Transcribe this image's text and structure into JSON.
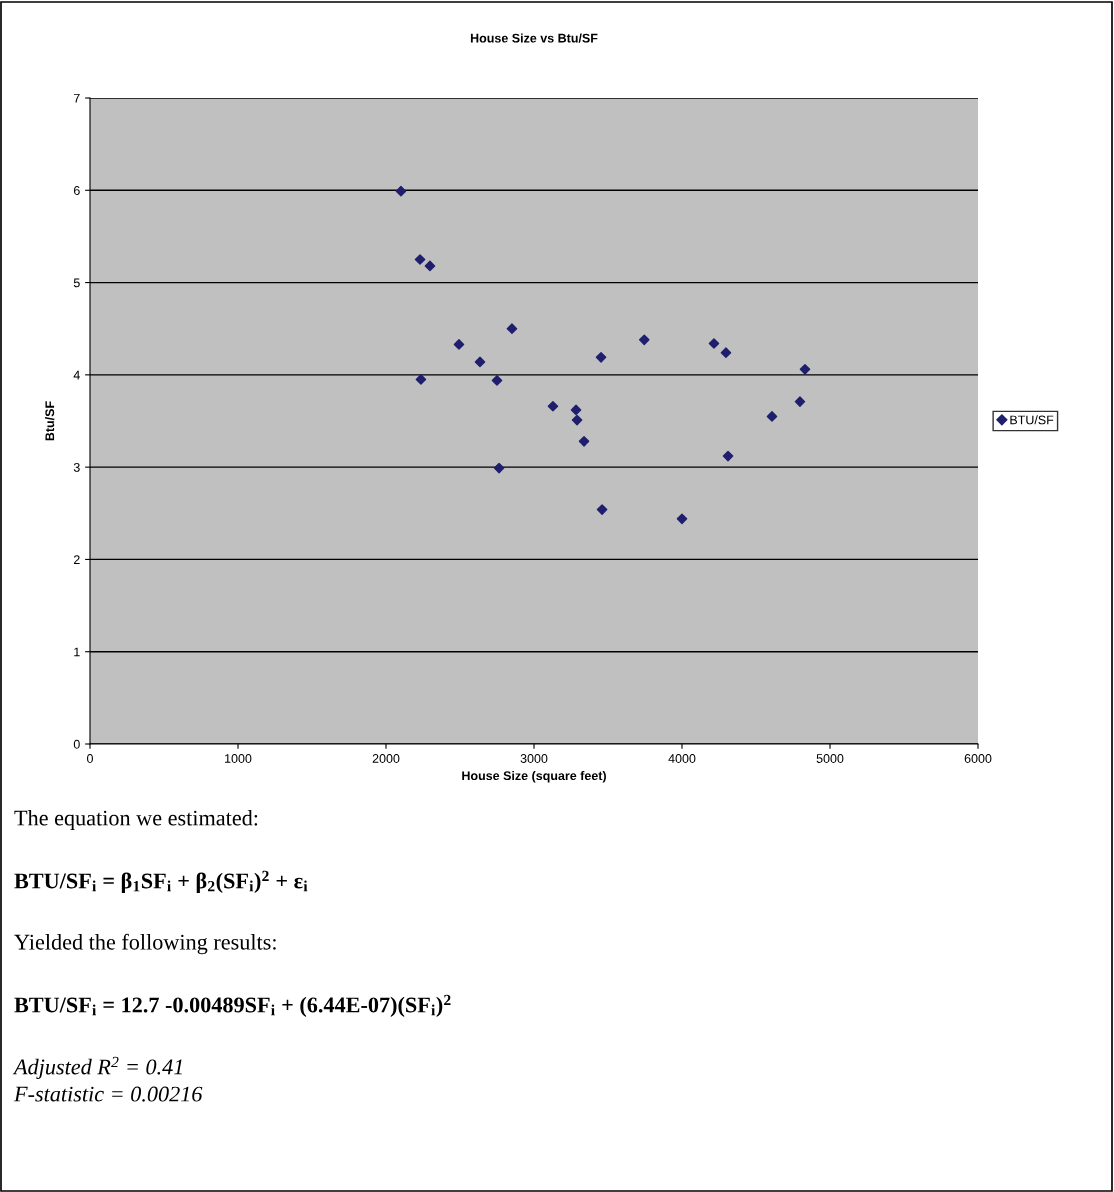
{
  "chart_data": {
    "type": "scatter",
    "title": "House Size vs Btu/SF",
    "xlabel": "House Size (square feet)",
    "ylabel": "Btu/SF",
    "x": [
      2101,
      2230,
      2297,
      2236,
      2493,
      2635,
      2851,
      2750,
      2764,
      3128,
      3284,
      3291,
      3338,
      3453,
      3460,
      3745,
      4000,
      4216,
      4297,
      4311,
      4608,
      4797,
      4831
    ],
    "series": [
      {
        "name": "BTU/SF",
        "color": "#1f1f6e",
        "values": [
          5.99,
          5.25,
          5.18,
          3.95,
          4.33,
          4.14,
          4.5,
          3.94,
          2.99,
          3.66,
          3.62,
          3.51,
          3.28,
          4.19,
          2.54,
          4.38,
          2.44,
          4.34,
          4.24,
          3.12,
          3.55,
          3.71,
          4.06
        ]
      }
    ],
    "xlim": [
      0,
      6000
    ],
    "xticks": [
      0,
      1000,
      2000,
      3000,
      4000,
      5000,
      6000
    ],
    "ylim": [
      0,
      7
    ],
    "yticks": [
      0,
      1,
      2,
      3,
      4,
      5,
      6,
      7
    ],
    "grid": "y",
    "legend": "right",
    "marker": "diamond",
    "annotations": [
      "The equation we estimated:",
      "BTU/SF$_{i}$ = β$_{1}$SF$_{i}$ + β$_{2}$(SF$_{i}$)$^{2}$ + ε$_{i}$",
      "Yielded the following results:",
      "BTU/SF$_{i}$ = 12.7 -0.00489SF$_{i}$ + (6.44E-07)(SF$_{i}$)$^{2}$",
      "Adjusted R$^{2}$ = 0.41",
      "F-statistic = 0.00216"
    ]
  }
}
